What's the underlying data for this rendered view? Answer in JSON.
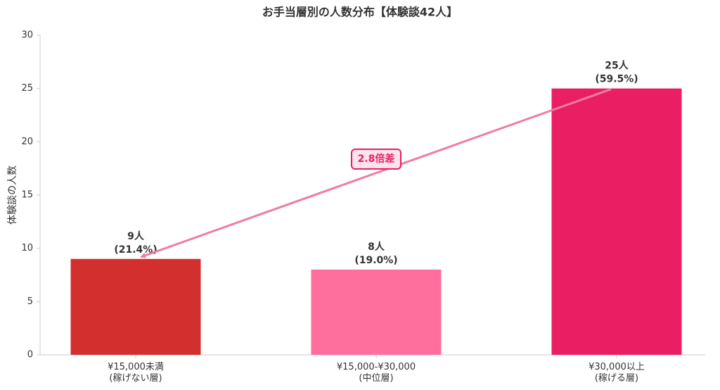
{
  "chart_data": {
    "type": "bar",
    "title": "お手当層別の人数分布【体験談42人】",
    "ylabel": "体験談の人数",
    "categories": [
      "¥15,000未満\n(稼げない層)",
      "¥15,000-¥30,000\n(中位層)",
      "¥30,000以上\n(稼げる層)"
    ],
    "values": [
      9,
      8,
      25
    ],
    "value_labels": [
      "9人\n(21.4%)",
      "8人\n(19.0%)",
      "25人\n(59.5%)"
    ],
    "colors": [
      "#d32f2f",
      "#ff6f9e",
      "#e91e63"
    ],
    "ylim": [
      0,
      30
    ],
    "yticks": [
      0,
      5,
      10,
      15,
      20,
      25,
      30
    ],
    "grid": false,
    "annotation": {
      "text": "2.8倍差",
      "color": "#f07ca3"
    }
  }
}
